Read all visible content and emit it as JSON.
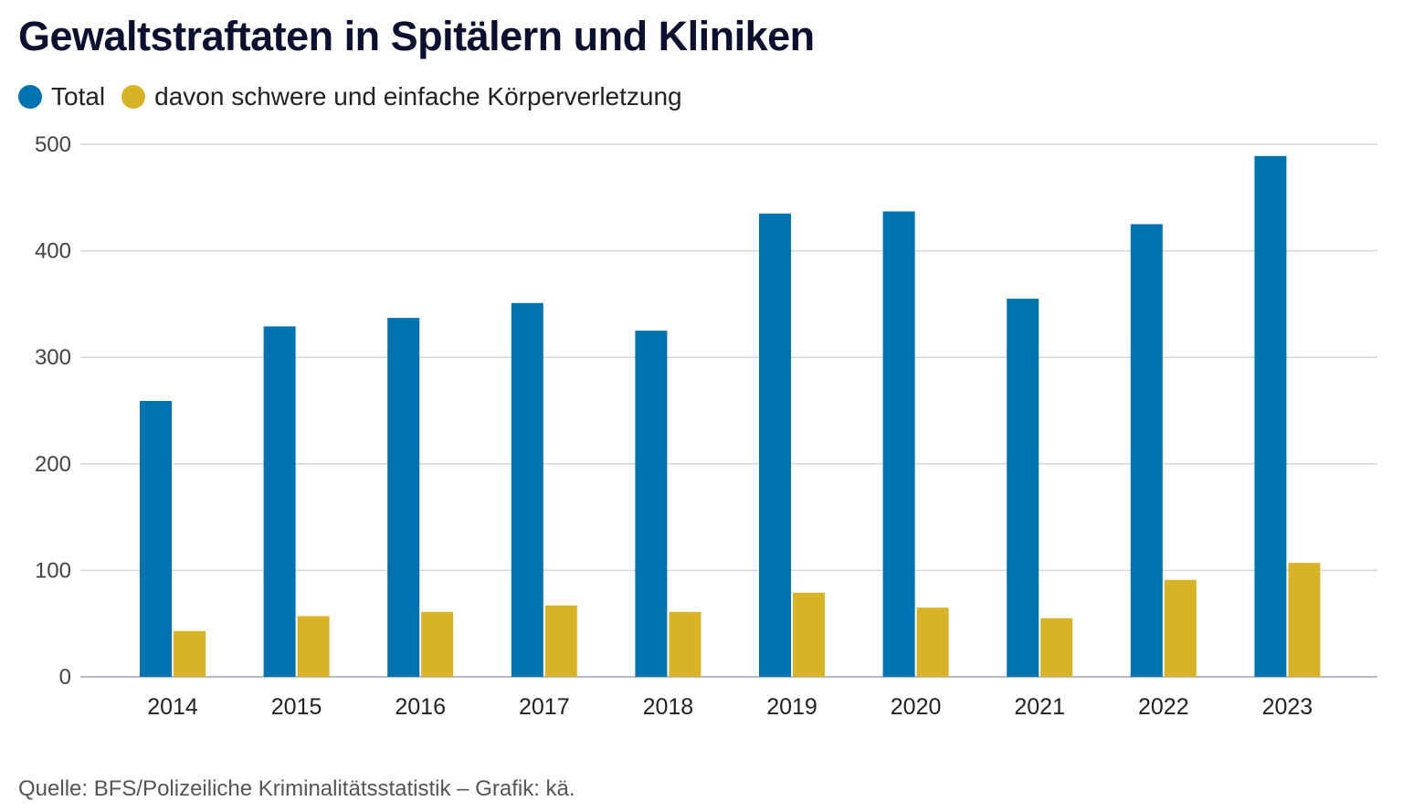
{
  "chart_data": {
    "type": "bar",
    "title": "Gewaltstraftaten in Spitälern und Kliniken",
    "categories": [
      "2014",
      "2015",
      "2016",
      "2017",
      "2018",
      "2019",
      "2020",
      "2021",
      "2022",
      "2023"
    ],
    "series": [
      {
        "name": "Total",
        "color": "#0072b0",
        "values": [
          259,
          329,
          337,
          351,
          325,
          435,
          437,
          355,
          425,
          489
        ]
      },
      {
        "name": "davon schwere und einfache Körperverletzung",
        "color": "#d8b326",
        "values": [
          43,
          57,
          61,
          67,
          61,
          79,
          65,
          55,
          91,
          107
        ]
      }
    ],
    "ylim": [
      0,
      500
    ],
    "yticks": [
      0,
      100,
      200,
      300,
      400,
      500
    ],
    "xlabel": "",
    "ylabel": "",
    "grid": true,
    "legend": "top-left",
    "source": "Quelle: BFS/Polizeiliche Kriminalitätsstatistik – Grafik: kä."
  }
}
